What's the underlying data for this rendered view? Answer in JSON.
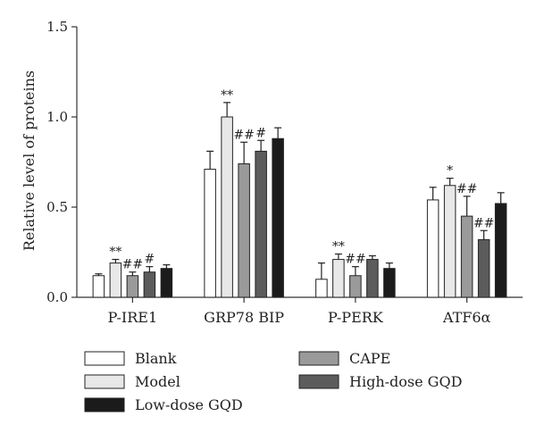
{
  "chart_data": {
    "type": "bar",
    "ylabel": "Relative level of proteins",
    "ylim": [
      0,
      1.5
    ],
    "yticks": [
      "0.0",
      "0.5",
      "1.0",
      "1.5"
    ],
    "categories": [
      "P-IRE1",
      "GRP78 BIP",
      "P-PERK",
      "ATF6α"
    ],
    "series": [
      {
        "name": "Blank",
        "color": "#ffffff",
        "values": [
          0.12,
          0.71,
          0.1,
          0.54
        ],
        "errors": [
          0.01,
          0.1,
          0.09,
          0.07
        ],
        "sig": [
          "",
          "",
          "",
          ""
        ]
      },
      {
        "name": "Model",
        "color": "#e8e8e8",
        "values": [
          0.19,
          1.0,
          0.21,
          0.62
        ],
        "errors": [
          0.02,
          0.08,
          0.03,
          0.04
        ],
        "sig": [
          "**",
          "**",
          "**",
          "*"
        ]
      },
      {
        "name": "CAPE",
        "color": "#9a9a9a",
        "values": [
          0.12,
          0.74,
          0.12,
          0.45
        ],
        "errors": [
          0.02,
          0.12,
          0.05,
          0.11
        ],
        "sig": [
          "##",
          "##",
          "##",
          "##"
        ]
      },
      {
        "name": "High-dose GQD",
        "color": "#5c5c5c",
        "values": [
          0.14,
          0.81,
          0.21,
          0.32
        ],
        "errors": [
          0.03,
          0.06,
          0.02,
          0.05
        ],
        "sig": [
          "#",
          "#",
          "",
          "##"
        ]
      },
      {
        "name": "Low-dose GQD",
        "color": "#1b1b1b",
        "values": [
          0.16,
          0.88,
          0.16,
          0.52
        ],
        "errors": [
          0.02,
          0.06,
          0.03,
          0.06
        ],
        "sig": [
          "",
          "",
          "",
          ""
        ]
      }
    ],
    "legend": {
      "placement": "bottom",
      "rows": [
        [
          "Blank",
          "CAPE"
        ],
        [
          "Model",
          "High-dose GQD"
        ],
        [
          "Low-dose GQD"
        ]
      ]
    },
    "grid": false
  }
}
